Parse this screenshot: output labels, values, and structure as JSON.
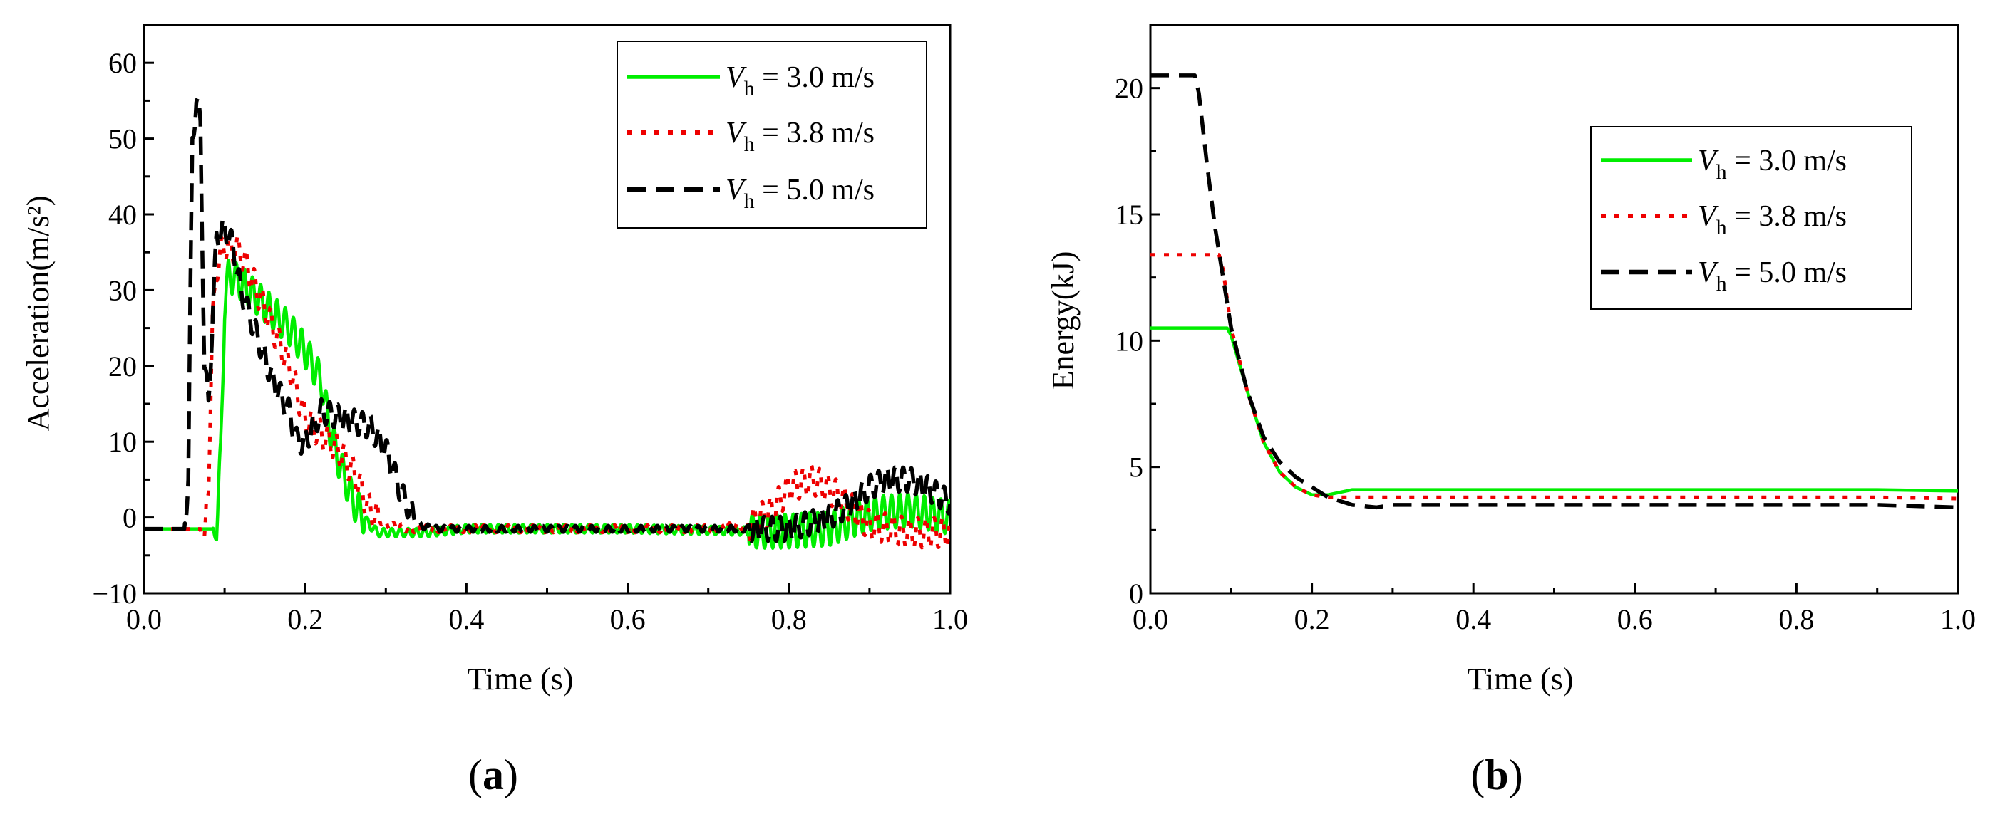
{
  "chart_data": [
    {
      "type": "line",
      "panel": "a",
      "panel_label": "a",
      "xlabel": "Time (s)",
      "ylabel": "Acceleration(m/s²)",
      "xlim": [
        0.0,
        1.0
      ],
      "ylim": [
        -10,
        65
      ],
      "xticks": [
        0.0,
        0.2,
        0.4,
        0.6,
        0.8,
        1.0
      ],
      "xtick_labels": [
        "0.0",
        "0.2",
        "0.4",
        "0.6",
        "0.8",
        "1.0"
      ],
      "yticks": [
        -10,
        0,
        10,
        20,
        30,
        40,
        50,
        60
      ],
      "ytick_labels": [
        "−10",
        "0",
        "10",
        "20",
        "30",
        "40",
        "50",
        "60"
      ],
      "legend_position": "top-right",
      "series": [
        {
          "name": "V_h = 3.0 m/s",
          "legend_var": "V",
          "legend_sub": "h",
          "legend_rest": " = 3.0 m/s",
          "color": "#00ee00",
          "style": "solid",
          "noise": 2.5,
          "x": [
            0.0,
            0.085,
            0.09,
            0.095,
            0.1,
            0.105,
            0.12,
            0.14,
            0.16,
            0.18,
            0.2,
            0.22,
            0.23,
            0.24,
            0.26,
            0.28,
            0.29,
            0.3,
            0.35,
            0.4,
            0.6,
            0.75,
            0.8,
            0.85,
            0.9,
            0.95,
            1.0
          ],
          "y": [
            -1.5,
            -1.5,
            -2.5,
            8,
            28,
            32,
            31,
            29,
            27,
            25,
            22,
            18,
            12,
            8,
            2,
            -1,
            -2,
            -2,
            -2,
            -1.5,
            -1.5,
            -1.8,
            -1.8,
            -1.5,
            0.5,
            1.0,
            0.0
          ]
        },
        {
          "name": "V_h = 3.8 m/s",
          "legend_var": "V",
          "legend_sub": "h",
          "legend_rest": " = 3.8 m/s",
          "color": "#ee0000",
          "style": "dotted",
          "noise": 2.2,
          "x": [
            0.0,
            0.07,
            0.075,
            0.08,
            0.085,
            0.09,
            0.1,
            0.12,
            0.14,
            0.16,
            0.18,
            0.2,
            0.22,
            0.24,
            0.26,
            0.28,
            0.3,
            0.33,
            0.4,
            0.6,
            0.7,
            0.75,
            0.78,
            0.8,
            0.83,
            0.86,
            0.88,
            0.9,
            0.95,
            1.0
          ],
          "y": [
            -1.5,
            -1.5,
            -3,
            5,
            25,
            33,
            36,
            35,
            30,
            25,
            20,
            13,
            11,
            9,
            6,
            1,
            -1,
            -1.5,
            -1.5,
            -1.5,
            -1.5,
            -1,
            1,
            4,
            5,
            3,
            1,
            -1,
            -2,
            -2
          ]
        },
        {
          "name": "V_h = 5.0 m/s",
          "legend_var": "V",
          "legend_sub": "h",
          "legend_rest": " = 5.0 m/s",
          "color": "#000000",
          "style": "dashed",
          "noise": 1.8,
          "x": [
            0.0,
            0.05,
            0.055,
            0.06,
            0.065,
            0.07,
            0.075,
            0.08,
            0.09,
            0.1,
            0.11,
            0.12,
            0.14,
            0.16,
            0.18,
            0.19,
            0.2,
            0.22,
            0.25,
            0.28,
            0.3,
            0.32,
            0.34,
            0.36,
            0.4,
            0.6,
            0.8,
            0.85,
            0.88,
            0.9,
            0.92,
            0.95,
            0.97,
            1.0
          ],
          "y": [
            -1.5,
            -1.5,
            5,
            50,
            55,
            52,
            20,
            15,
            37,
            38,
            36,
            30,
            24,
            18,
            14,
            10,
            10,
            14,
            13,
            12,
            9,
            3,
            -1,
            -1.5,
            -1.5,
            -1.5,
            -1.5,
            0,
            2,
            4,
            5,
            5,
            4,
            2
          ]
        }
      ]
    },
    {
      "type": "line",
      "panel": "b",
      "panel_label": "b",
      "xlabel": "Time (s)",
      "ylabel": "Energy(kJ)",
      "xlim": [
        0.0,
        1.0
      ],
      "ylim": [
        0,
        22.5
      ],
      "xticks": [
        0.0,
        0.2,
        0.4,
        0.6,
        0.8,
        1.0
      ],
      "xtick_labels": [
        "0.0",
        "0.2",
        "0.4",
        "0.6",
        "0.8",
        "1.0"
      ],
      "yticks": [
        0,
        5,
        10,
        15,
        20
      ],
      "ytick_labels": [
        "0",
        "5",
        "10",
        "15",
        "20"
      ],
      "legend_position": "upper-right",
      "series": [
        {
          "name": "V_h = 3.0 m/s",
          "legend_var": "V",
          "legend_sub": "h",
          "legend_rest": " = 3.0 m/s",
          "color": "#00ee00",
          "style": "solid",
          "noise": 0,
          "x": [
            0.0,
            0.095,
            0.1,
            0.12,
            0.14,
            0.16,
            0.18,
            0.2,
            0.22,
            0.25,
            0.3,
            0.6,
            0.9,
            1.0
          ],
          "y": [
            10.5,
            10.5,
            10.2,
            8.0,
            6.0,
            4.8,
            4.2,
            3.9,
            3.9,
            4.1,
            4.1,
            4.1,
            4.1,
            4.05
          ]
        },
        {
          "name": "V_h = 3.8 m/s",
          "legend_var": "V",
          "legend_sub": "h",
          "legend_rest": " = 3.8 m/s",
          "color": "#ee0000",
          "style": "dotted",
          "noise": 0,
          "x": [
            0.0,
            0.085,
            0.09,
            0.1,
            0.12,
            0.14,
            0.16,
            0.18,
            0.2,
            0.22,
            0.25,
            0.6,
            0.9,
            1.0
          ],
          "y": [
            13.4,
            13.4,
            12.8,
            10.5,
            8.0,
            6.0,
            4.8,
            4.2,
            3.9,
            3.8,
            3.8,
            3.8,
            3.8,
            3.75
          ]
        },
        {
          "name": "V_h = 5.0 m/s",
          "legend_var": "V",
          "legend_sub": "h",
          "legend_rest": " = 5.0 m/s",
          "color": "#000000",
          "style": "dashed",
          "noise": 0,
          "x": [
            0.0,
            0.055,
            0.06,
            0.07,
            0.08,
            0.09,
            0.1,
            0.12,
            0.14,
            0.16,
            0.18,
            0.2,
            0.22,
            0.25,
            0.28,
            0.3,
            0.6,
            0.9,
            1.0
          ],
          "y": [
            20.5,
            20.5,
            19.8,
            17.0,
            14.5,
            12.5,
            10.5,
            8.0,
            6.2,
            5.2,
            4.6,
            4.2,
            3.8,
            3.5,
            3.4,
            3.5,
            3.5,
            3.5,
            3.4
          ]
        }
      ]
    }
  ]
}
